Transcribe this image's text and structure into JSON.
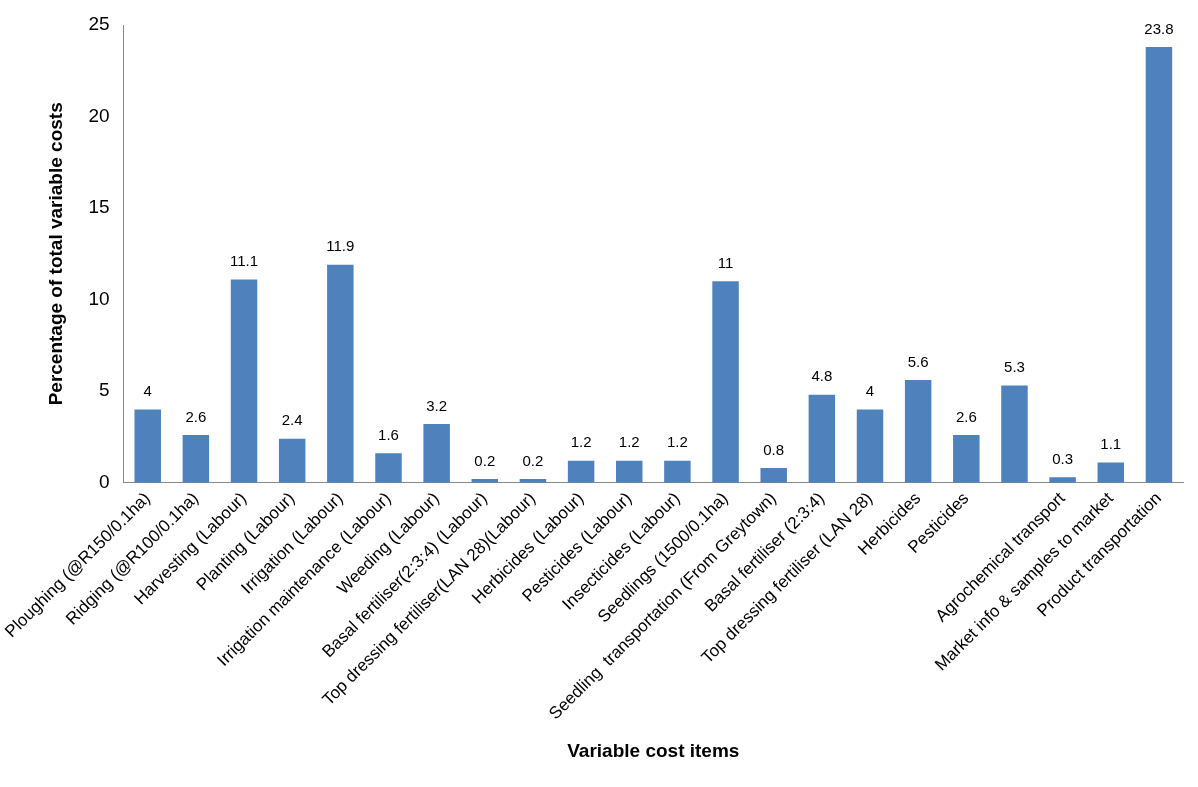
{
  "chart_data": {
    "type": "bar",
    "xlabel": "Variable cost items",
    "ylabel": "Percentage of total variable costs",
    "categories": [
      "Ploughing (@R150/0.1ha)",
      "Ridging (@R100/0.1ha)",
      "Harvesting (Labour)",
      "Planting (Labour)",
      "Irrigation (Labour)",
      "Irrigation maintenance (Labour)",
      "Weeding (Labour)",
      "Basal fertiliser(2:3:4) (Labour)",
      "Top dressing fertiliser(LAN 28)(Labour)",
      "Herbicides (Labour)",
      "Pesticides (Labour)",
      "Insecticides (Labour)",
      "Seedlings (1500/0.1ha)",
      "Seedling  transportation (From Greytown)",
      "Basal fertiliser (2:3:4)",
      "Top dressing fertiliser (LAN 28)",
      "Herbicides",
      "Pesticides",
      null,
      "Agrochemical transport",
      "Market info & samples to market",
      "Product transportation"
    ],
    "values": [
      4,
      2.6,
      11.1,
      2.4,
      11.9,
      1.6,
      3.2,
      0.2,
      0.2,
      1.2,
      1.2,
      1.2,
      11,
      0.8,
      4.8,
      4,
      5.6,
      2.6,
      5.3,
      0.3,
      1.1,
      23.8
    ],
    "color": "#4f81bd",
    "ylim": [
      0,
      25
    ],
    "yticks": [
      0,
      5,
      10,
      15,
      20,
      25
    ],
    "grid": false,
    "legend": false,
    "data_labels": true
  }
}
